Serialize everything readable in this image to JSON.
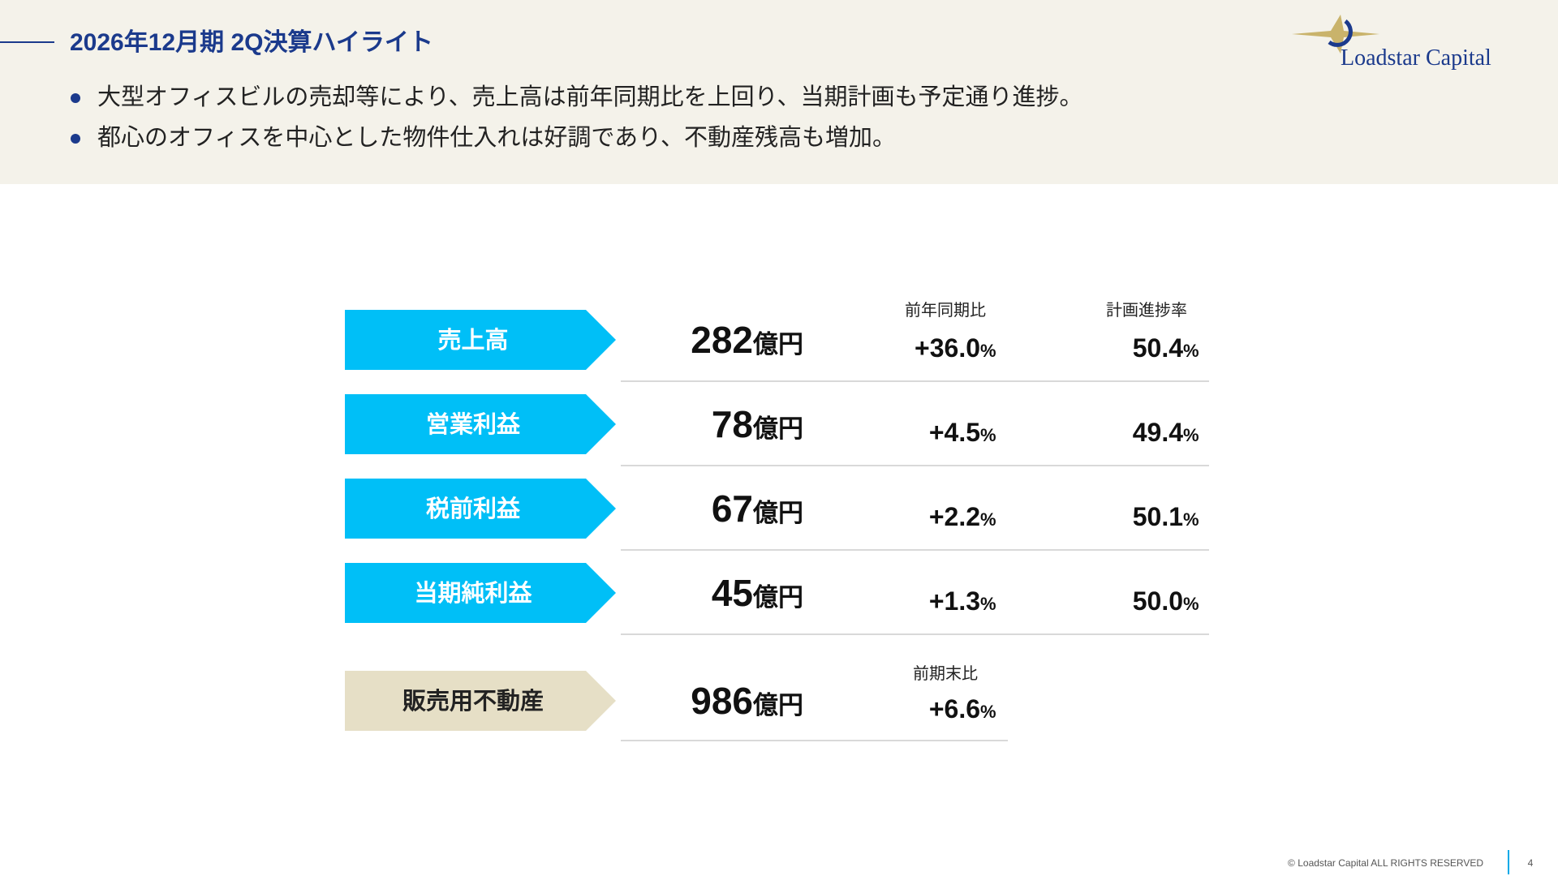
{
  "header": {
    "title": "2026年12月期 2Q決算ハイライト",
    "bullets": [
      "大型オフィスビルの売却等により、売上高は前年同期比を上回り、当期計画も予定通り進捗。",
      "都心のオフィスを中心とした物件仕入れは好調であり、不動産残高も増加。"
    ]
  },
  "logo": "Loadstar Capital",
  "table": {
    "column_headers": [
      "前年同期比",
      "計画進捗率"
    ],
    "rows": [
      {
        "label": "売上高",
        "amount": "282",
        "amount_unit": "億円",
        "yoy": "+36.0",
        "yoy_unit": "%",
        "progress": "50.4",
        "progress_unit": "%"
      },
      {
        "label": "営業利益",
        "amount": "78",
        "amount_unit": "億円",
        "yoy": "+4.5",
        "yoy_unit": "%",
        "progress": "49.4",
        "progress_unit": "%"
      },
      {
        "label": "税前利益",
        "amount": "67",
        "amount_unit": "億円",
        "yoy": "+2.2",
        "yoy_unit": "%",
        "progress": "50.1",
        "progress_unit": "%"
      },
      {
        "label": "当期純利益",
        "amount": "45",
        "amount_unit": "億円",
        "yoy": "+1.3",
        "yoy_unit": "%",
        "progress": "50.0",
        "progress_unit": "%"
      }
    ]
  },
  "inventory": {
    "label": "販売用不動産",
    "amount": "986",
    "amount_unit": "億円",
    "column_header": "前期末比",
    "change": "+6.6",
    "change_unit": "%"
  },
  "footer": {
    "copyright": "© Loadstar Capital ALL RIGHTS RESERVED",
    "page": "4"
  }
}
